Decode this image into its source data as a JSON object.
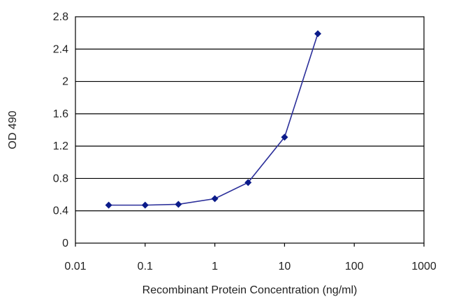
{
  "chart_data": {
    "type": "line",
    "title": "",
    "xlabel": "Recombinant Protein Concentration (ng/ml)",
    "ylabel": "OD 490",
    "xscale": "log",
    "xlim": [
      0.01,
      1000
    ],
    "ylim": [
      0,
      2.8
    ],
    "xticks": [
      0.01,
      0.1,
      1,
      10,
      100,
      1000
    ],
    "xtick_labels": [
      "0.01",
      "0.1",
      "1",
      "10",
      "100",
      "1000"
    ],
    "yticks": [
      0,
      0.4,
      0.8,
      1.2,
      1.6,
      2,
      2.4,
      2.8
    ],
    "ytick_labels": [
      "0",
      "0.4",
      "0.8",
      "1.2",
      "1.6",
      "2",
      "2.4",
      "2.8"
    ],
    "grid": "horizontal",
    "legend": "none",
    "series": [
      {
        "x": [
          0.03,
          0.1,
          0.3,
          1,
          3,
          10,
          30
        ],
        "y": [
          0.47,
          0.47,
          0.48,
          0.55,
          0.75,
          1.31,
          2.59
        ],
        "marker": "diamond",
        "color": "#2b2f9a"
      }
    ],
    "colors": {
      "plot_border": "#000000",
      "grid": "#000000",
      "line": "#2b2f9a",
      "marker": "#0b1b8a"
    }
  }
}
